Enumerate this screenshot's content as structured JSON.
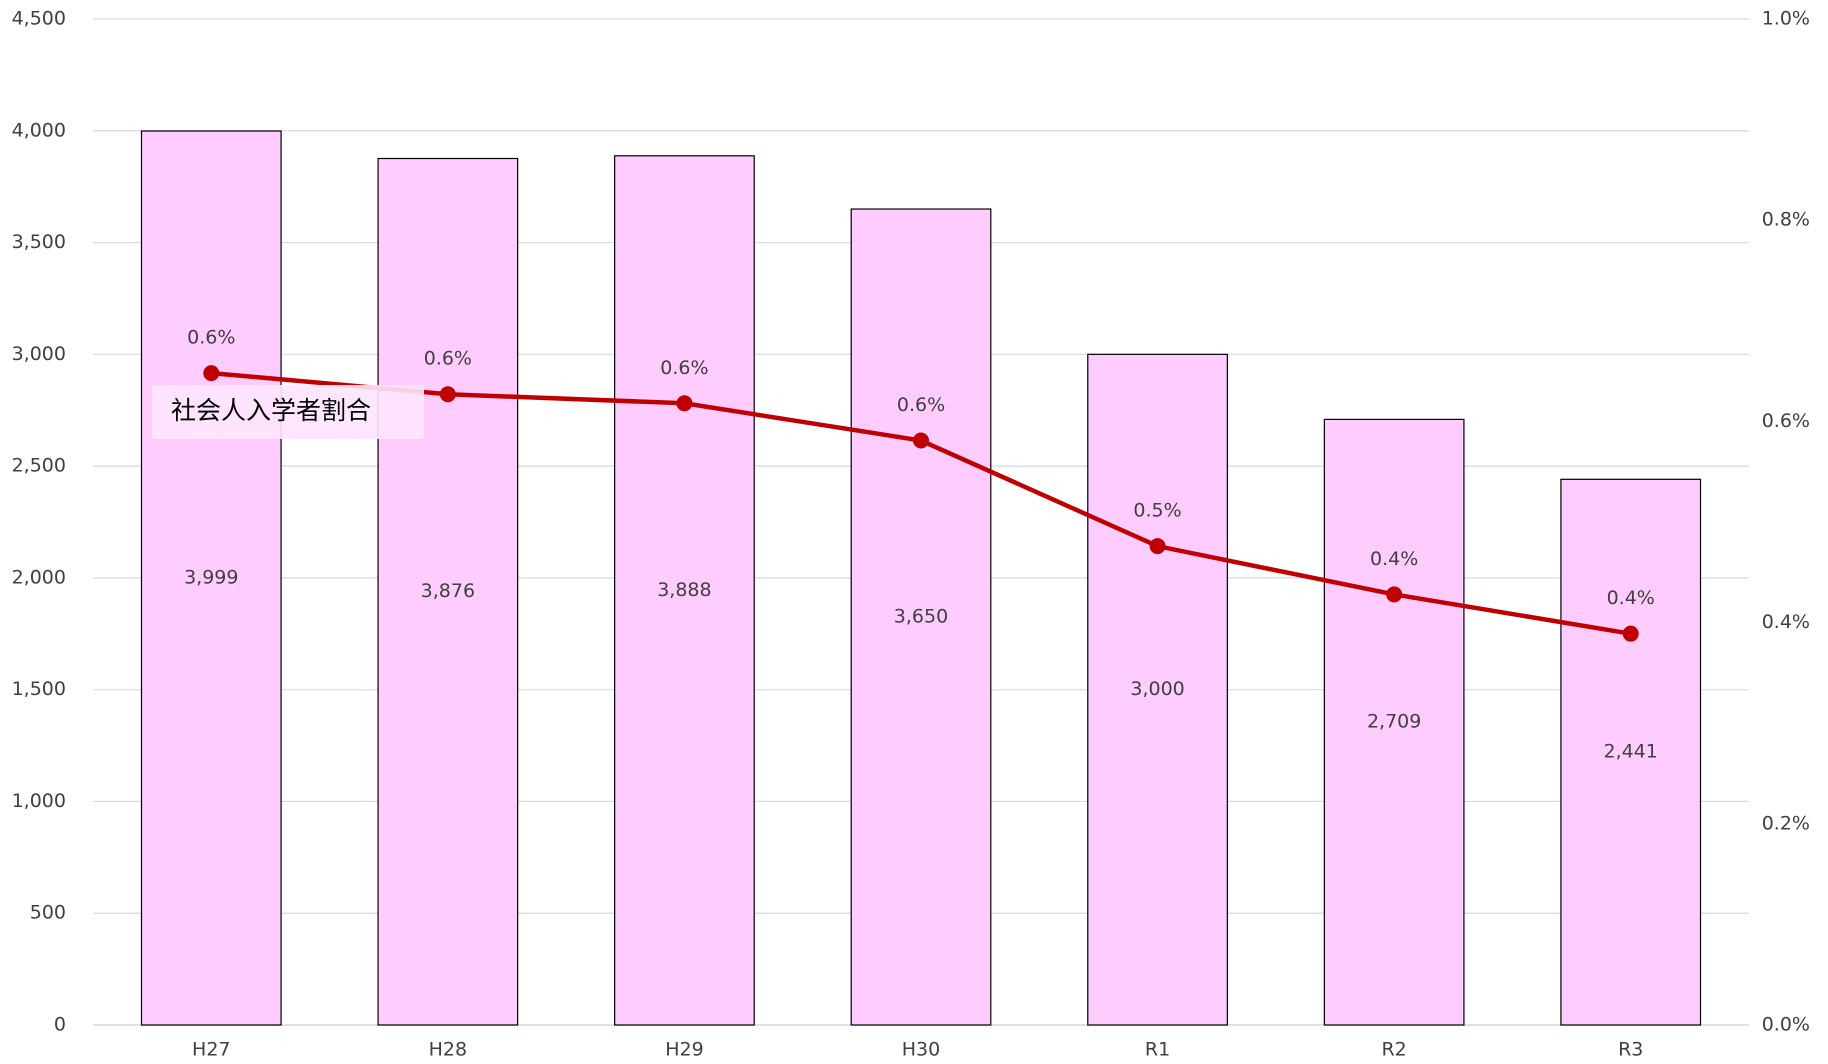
{
  "chart_data": {
    "type": "bar_line",
    "categories": [
      "H27",
      "H28",
      "H29",
      "H30",
      "R1",
      "R2",
      "R3"
    ],
    "series": [
      {
        "type": "bar",
        "color": "#ffccff",
        "values": [
          3999,
          3876,
          3888,
          3650,
          3000,
          2709,
          2441
        ],
        "value_labels": [
          "3,999",
          "3,876",
          "3,888",
          "3,650",
          "3,000",
          "2,709",
          "2,441"
        ]
      },
      {
        "type": "line",
        "name": "社会人入学者割合",
        "color": "#c00000",
        "axis": "y2",
        "values": [
          0.648,
          0.627,
          0.618,
          0.581,
          0.476,
          0.428,
          0.389
        ],
        "value_labels": [
          "0.6%",
          "0.6%",
          "0.6%",
          "0.6%",
          "0.5%",
          "0.4%",
          "0.4%"
        ]
      }
    ],
    "ylim": [
      0,
      4500
    ],
    "yticks": [
      0,
      500,
      {
        "value": 1000,
        "label": "1,000"
      },
      {
        "value": 1500,
        "label": "1,500"
      },
      {
        "value": 2000,
        "label": "2,000"
      },
      {
        "value": 2500,
        "label": "2,500"
      },
      {
        "value": 3000,
        "label": "3,000"
      },
      {
        "value": 3500,
        "label": "3,500"
      },
      {
        "value": 4000,
        "label": "4,000"
      },
      {
        "value": 4500,
        "label": "4,500"
      }
    ],
    "y2lim": [
      0,
      1.0
    ],
    "y2ticks": [
      {
        "value": 0,
        "label": "0.0%"
      },
      {
        "value": 0.2,
        "label": "0.2%"
      },
      {
        "value": 0.4,
        "label": "0.4%"
      },
      {
        "value": 0.6,
        "label": "0.6%"
      },
      {
        "value": 0.8,
        "label": "0.8%"
      },
      {
        "value": 1.0,
        "label": "1.0%"
      }
    ],
    "grid": true
  }
}
